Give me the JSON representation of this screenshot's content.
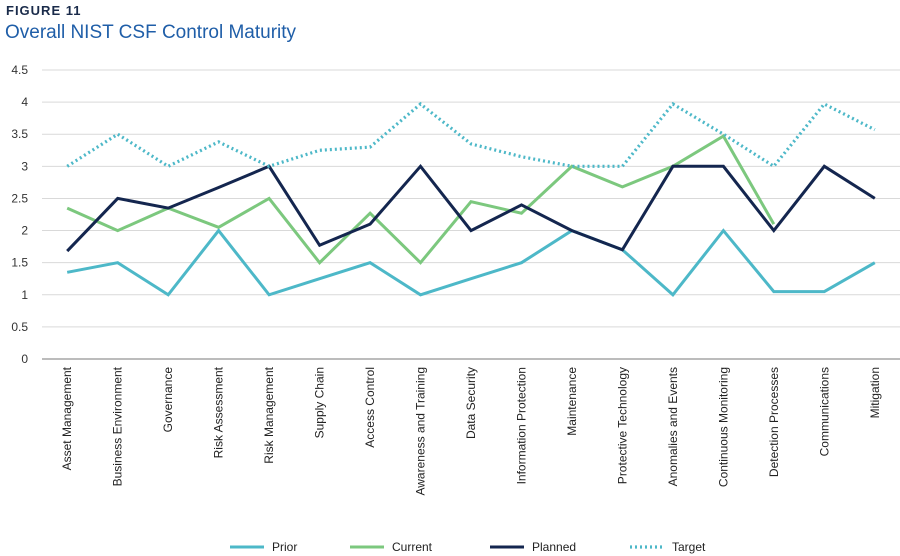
{
  "figure_label": "FIGURE 11",
  "chart_data": {
    "type": "line",
    "title": "Overall NIST CSF Control Maturity",
    "xlabel": "",
    "ylabel": "",
    "ylim": [
      0,
      4.5
    ],
    "yticks": [
      "0",
      "0.5",
      "1",
      "1.5",
      "2",
      "2.5",
      "3",
      "3.5",
      "4",
      "4.5"
    ],
    "grid": true,
    "legend_position": "bottom",
    "categories": [
      "Asset Management",
      "Business Environment",
      "Governance",
      "Risk Assessment",
      "Risk Management",
      "Supply Chain",
      "Access Control",
      "Awareness and Training",
      "Data Security",
      "Information Protection",
      "Maintenance",
      "Protective Technology",
      "Anomalies and Events",
      "Continuous Monitoring",
      "Detection Processes",
      "Communications",
      "Mitigation"
    ],
    "series": [
      {
        "name": "Prior",
        "color": "#4db8c8",
        "style": "solid",
        "values": [
          1.35,
          1.5,
          1.0,
          2.0,
          1.0,
          1.25,
          1.5,
          1.0,
          1.25,
          1.5,
          2.0,
          1.7,
          1.0,
          2.0,
          1.05,
          1.05,
          1.5
        ]
      },
      {
        "name": "Current",
        "color": "#7cc87e",
        "style": "solid",
        "values": [
          2.35,
          2.0,
          2.35,
          2.05,
          2.5,
          1.5,
          2.27,
          1.5,
          2.45,
          2.27,
          3.0,
          2.68,
          3.0,
          3.47,
          2.1,
          null,
          null
        ]
      },
      {
        "name": "Planned",
        "color": "#14264f",
        "style": "solid",
        "values": [
          1.68,
          2.5,
          2.35,
          2.67,
          3.0,
          1.77,
          2.1,
          3.0,
          2.0,
          2.4,
          2.0,
          1.7,
          3.0,
          3.0,
          2.0,
          3.0,
          2.5
        ]
      },
      {
        "name": "Target",
        "color": "#4db8c8",
        "style": "dotted",
        "values": [
          3.0,
          3.5,
          3.0,
          3.38,
          3.0,
          3.25,
          3.3,
          3.97,
          3.35,
          3.15,
          3.0,
          3.0,
          3.97,
          3.5,
          3.0,
          3.97,
          3.57
        ]
      }
    ]
  }
}
